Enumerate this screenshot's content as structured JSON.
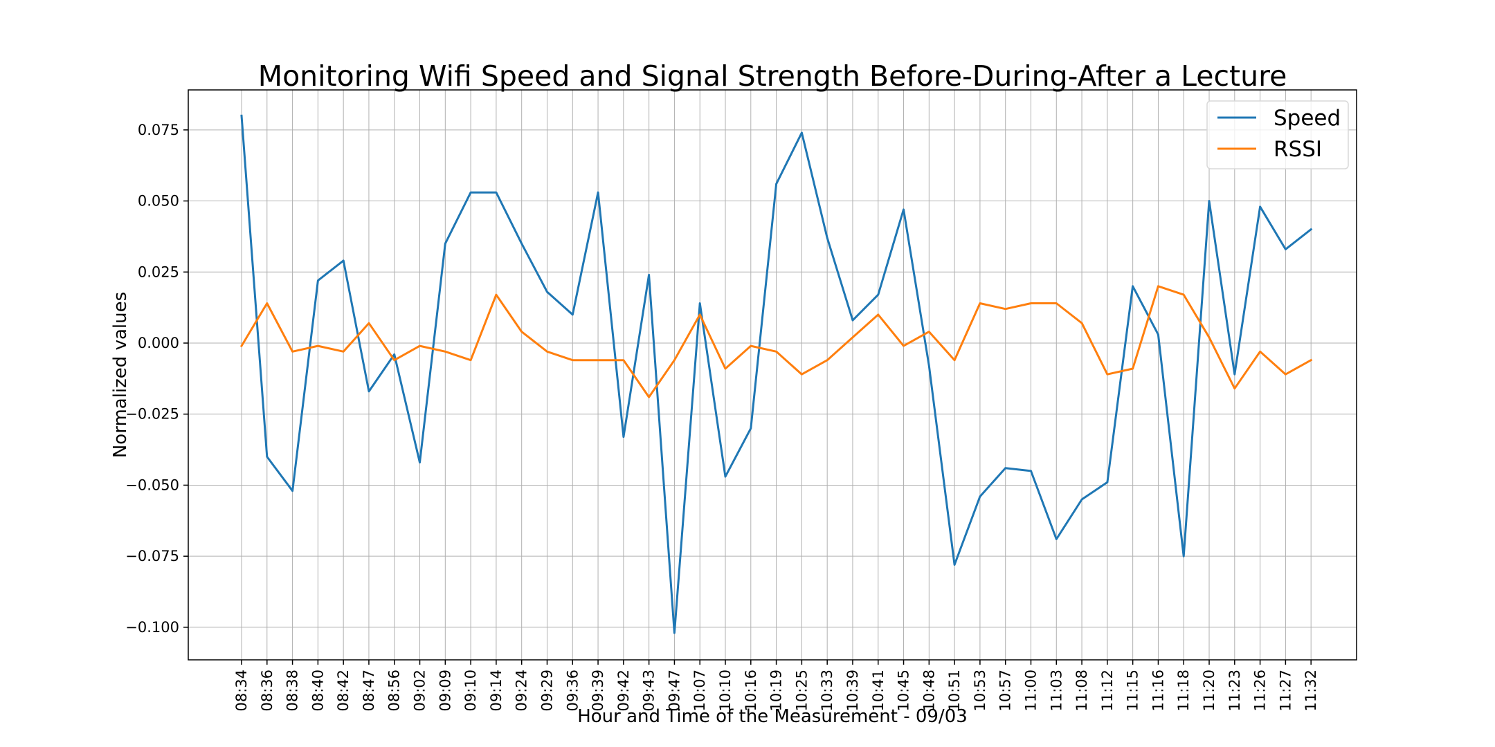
{
  "chart_data": {
    "type": "line",
    "title": "Monitoring Wifi Speed and Signal Strength Before-During-After a Lecture",
    "xlabel": "Hour and Time of the Measurement - 09/03",
    "ylabel": "Normalized values",
    "ylim": [
      -0.11,
      0.09
    ],
    "yticks": [
      0.075,
      0.05,
      0.025,
      0.0,
      -0.025,
      -0.05,
      -0.075,
      -0.1
    ],
    "ytick_labels": [
      "0.075",
      "0.050",
      "0.025",
      "0.000",
      "−0.025",
      "−0.050",
      "−0.075",
      "−0.100"
    ],
    "grid": true,
    "legend_position": "top-right",
    "categories": [
      "08:34",
      "08:36",
      "08:38",
      "08:40",
      "08:42",
      "08:47",
      "08:56",
      "09:02",
      "09:09",
      "09:10",
      "09:14",
      "09:24",
      "09:29",
      "09:36",
      "09:39",
      "09:42",
      "09:43",
      "09:47",
      "10:07",
      "10:10",
      "10:16",
      "10:19",
      "10:25",
      "10:33",
      "10:39",
      "10:41",
      "10:45",
      "10:48",
      "10:51",
      "10:53",
      "10:57",
      "11:00",
      "11:03",
      "11:08",
      "11:12",
      "11:15",
      "11:16",
      "11:18",
      "11:20",
      "11:23",
      "11:26",
      "11:27",
      "11:32"
    ],
    "series": [
      {
        "name": "Speed",
        "color": "#1f77b4",
        "values": [
          0.08,
          -0.04,
          -0.052,
          0.022,
          0.029,
          -0.017,
          -0.004,
          -0.042,
          0.035,
          0.053,
          0.053,
          0.035,
          0.018,
          0.01,
          0.053,
          -0.033,
          0.024,
          -0.102,
          0.014,
          -0.047,
          -0.03,
          0.056,
          0.074,
          0.037,
          0.008,
          0.017,
          0.047,
          -0.008,
          -0.078,
          -0.054,
          -0.044,
          -0.045,
          -0.069,
          -0.055,
          -0.049,
          0.02,
          0.003,
          -0.075,
          0.05,
          -0.011,
          0.048,
          0.033,
          0.04
        ]
      },
      {
        "name": "RSSI",
        "color": "#ff7f0e",
        "values": [
          -0.001,
          0.014,
          -0.003,
          -0.001,
          -0.003,
          0.007,
          -0.006,
          -0.001,
          -0.003,
          -0.006,
          0.017,
          0.004,
          -0.003,
          -0.006,
          -0.006,
          -0.006,
          -0.019,
          -0.006,
          0.01,
          -0.009,
          -0.001,
          -0.003,
          -0.011,
          -0.006,
          0.002,
          0.01,
          -0.001,
          0.004,
          -0.006,
          0.014,
          0.012,
          0.014,
          0.014,
          0.007,
          -0.011,
          -0.009,
          0.02,
          0.017,
          0.002,
          -0.016,
          -0.003,
          -0.011,
          -0.006
        ]
      }
    ]
  }
}
